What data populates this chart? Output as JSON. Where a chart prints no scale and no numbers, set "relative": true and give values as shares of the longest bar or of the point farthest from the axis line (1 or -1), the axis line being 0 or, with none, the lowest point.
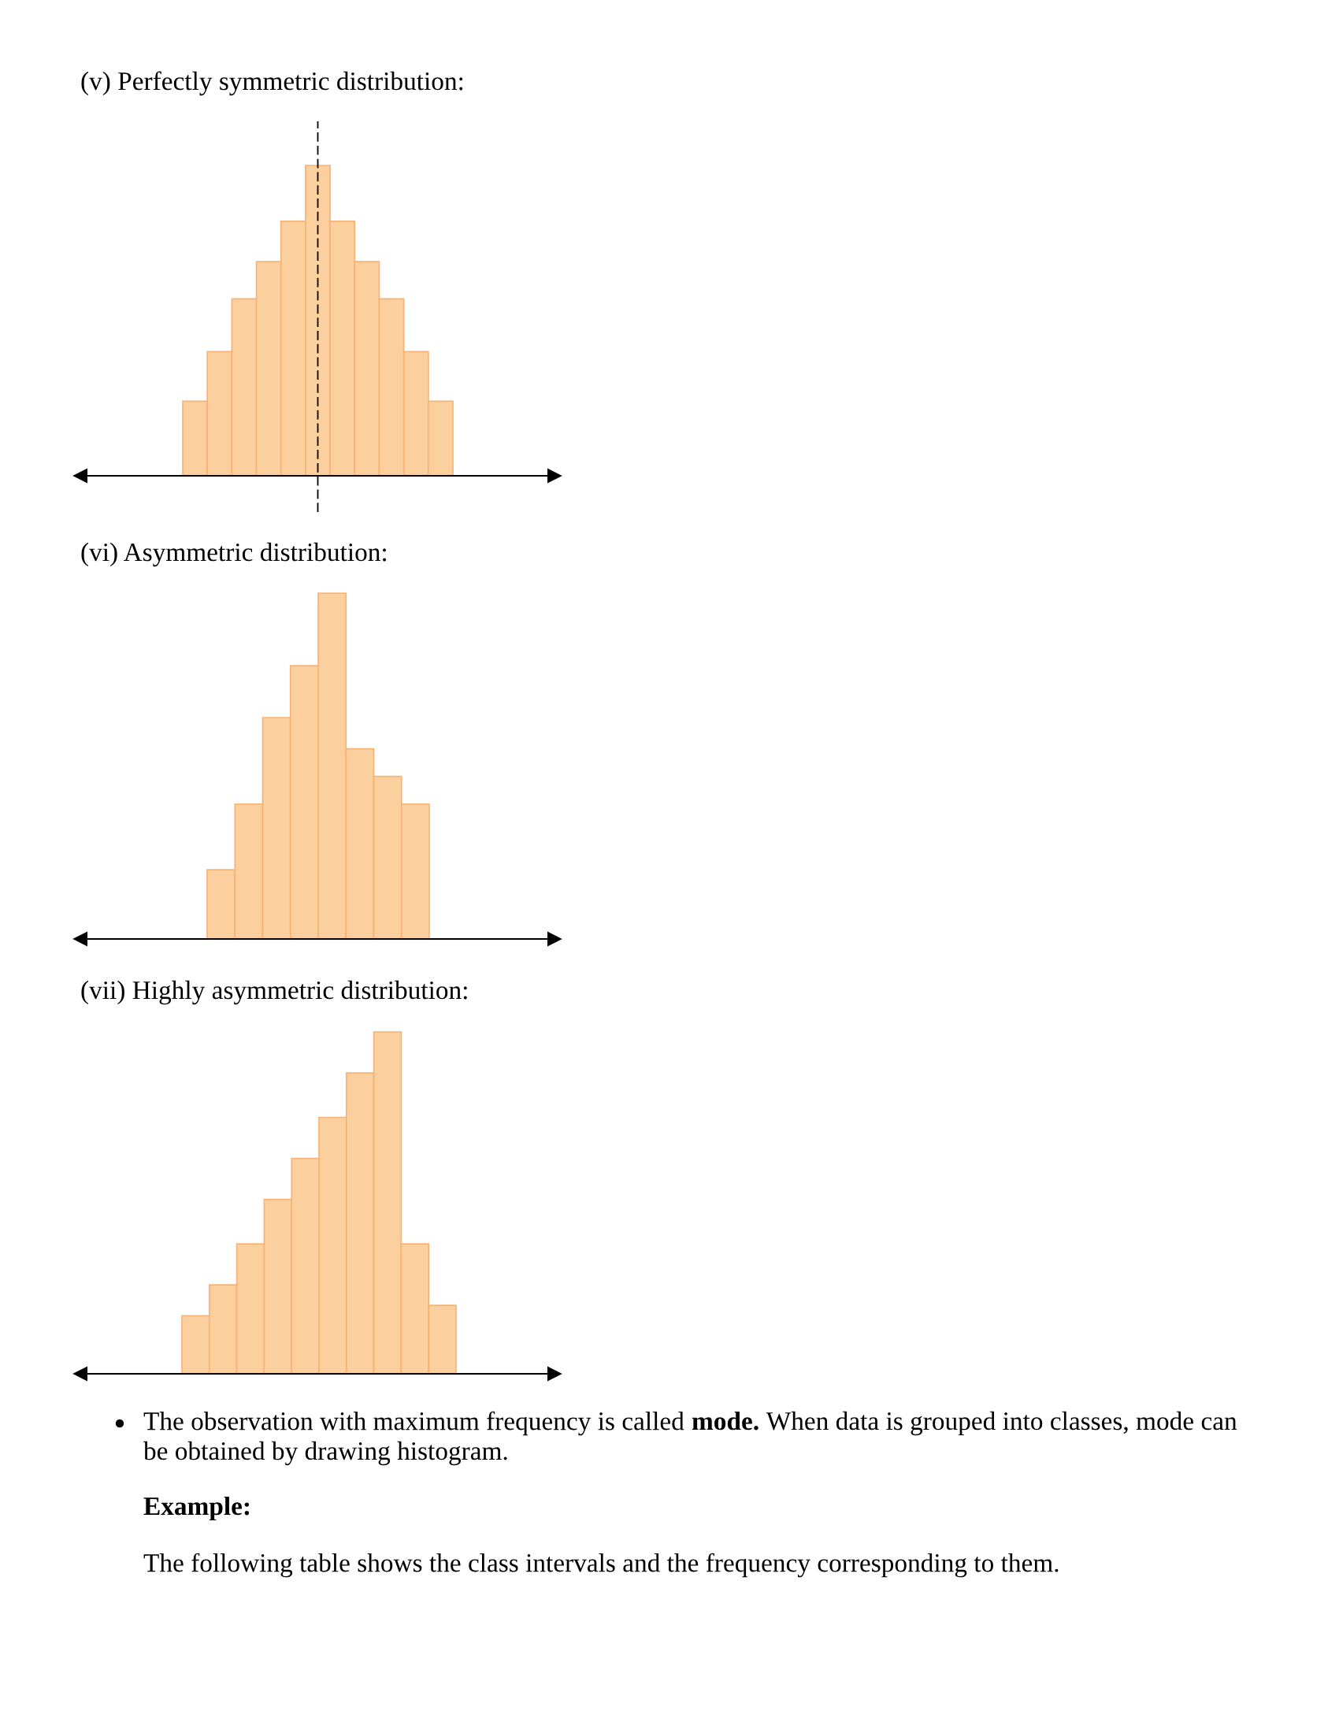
{
  "chart_data": [
    {
      "type": "bar",
      "title": "(v) Perfectly symmetric distribution:",
      "categories": [
        null,
        null,
        null,
        null,
        null,
        null,
        null,
        null,
        null,
        null,
        null
      ],
      "values": [
        0.24,
        0.4,
        0.57,
        0.69,
        0.82,
        1,
        0.82,
        0.69,
        0.57,
        0.4,
        0.24
      ],
      "color": "#fcd09e",
      "relative": true,
      "tick_labels": false
    },
    {
      "type": "bar",
      "title": "(vi) Asymmetric distribution:",
      "categories": [
        null,
        null,
        null,
        null,
        null,
        null,
        null,
        null
      ],
      "values": [
        0.2,
        0.39,
        0.64,
        0.79,
        1,
        0.55,
        0.47,
        0.39
      ],
      "color": "#fcd09e",
      "relative": true,
      "tick_labels": false
    },
    {
      "type": "bar",
      "title": "(vii) Highly asymmetric distribution:",
      "categories": [
        null,
        null,
        null,
        null,
        null,
        null,
        null,
        null,
        null,
        null
      ],
      "values": [
        0.17,
        0.26,
        0.38,
        0.51,
        0.63,
        0.75,
        0.88,
        1,
        0.38,
        0.2
      ],
      "color": "#fcd09e",
      "relative": true,
      "tick_labels": false,
      "annotations": [
        "The observation with maximum frequency is called mode. When data is grouped into classes, mode can be obtained by drawing histogram.",
        "Example:",
        "The following table shows the class intervals and the frequency corresponding to them."
      ]
    }
  ]
}
